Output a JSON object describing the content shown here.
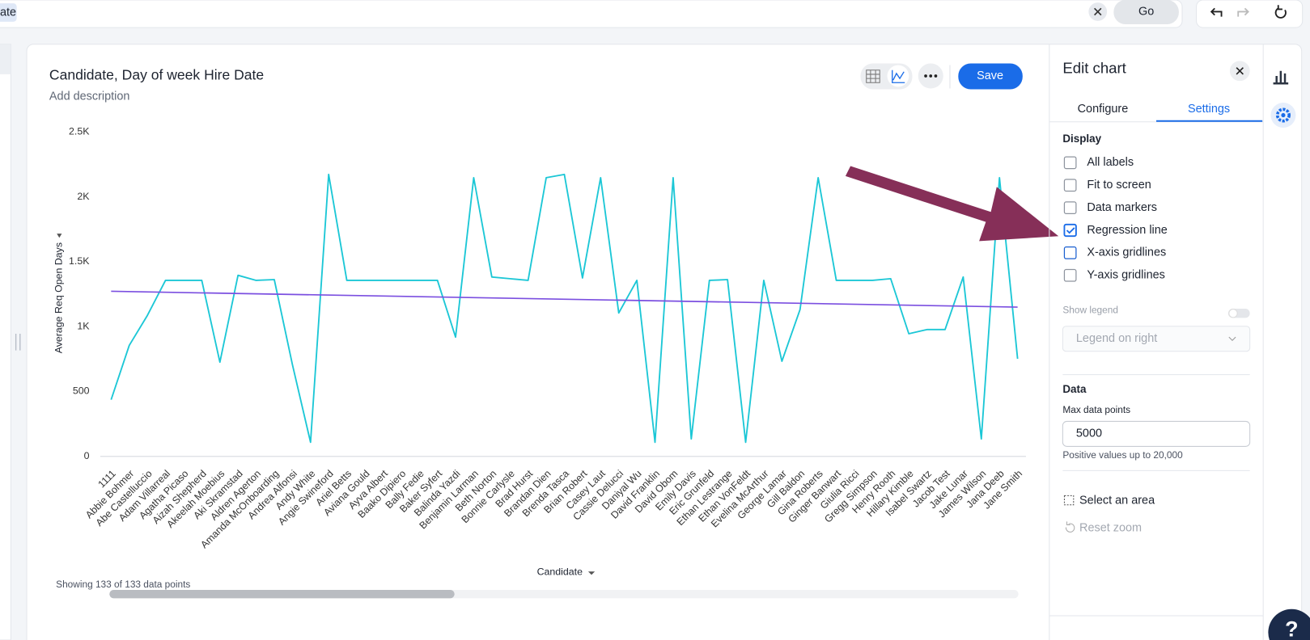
{
  "search": {
    "chip": "ate",
    "go": "Go"
  },
  "chart_data": {
    "type": "line",
    "title": "Candidate, Day of week Hire Date",
    "subtitle": "Add description",
    "save": "Save",
    "ylabel": "Average Req Open Days",
    "xlabel": "Candidate",
    "footnote": "Showing 133 of 133 data points",
    "categories": [
      "1111",
      "Abbie Bohmer",
      "Abe Castelluccio",
      "Adam Villarreal",
      "Agatha Picaso",
      "Aizah Shepherd",
      "Akeelah Moebius",
      "Aki Skramstad",
      "Aldren Agerton",
      "Amanda McOnboarding",
      "Andrea Alfonsi",
      "Andy White",
      "Angie Swineford",
      "Ariel Betts",
      "Aviana Gould",
      "Ayva Albert",
      "Baako Dipiero",
      "Bally Fedie",
      "Baker Syfert",
      "Balinda Yazdi",
      "Benjamin Larman",
      "Beth Norton",
      "Bonnie Carlysle",
      "Brad Hurst",
      "Brandan Dien",
      "Brenda Tasca",
      "Brian Robert",
      "Casey Laut",
      "Cassie Delucci",
      "Daniyal Wu",
      "David Franklin",
      "David Obom",
      "Emily Davis",
      "Eric Grunfeld",
      "Ethan Lestrange",
      "Ethan VonFeldt",
      "Evelina McArthur",
      "George Lamar",
      "Gill Baldon",
      "Gina Roberts",
      "Ginger Banwart",
      "Giulia Ricci",
      "Gregg Simpson",
      "Henry Rooth",
      "Hillary Kimble",
      "Isabel Swartz",
      "Jacob Test",
      "Jake Lunar",
      "James Wilson",
      "Jana Deeb",
      "Jane Smith"
    ],
    "values": [
      437,
      855,
      1086,
      1356,
      1356,
      1356,
      726,
      1395,
      1356,
      1362,
      707,
      109,
      2172,
      1356,
      1356,
      1356,
      1356,
      1356,
      1356,
      919,
      2147,
      1382,
      1369,
      1356,
      2147,
      2172,
      1375,
      2147,
      1105,
      1356,
      109,
      2147,
      135,
      1356,
      1362,
      109,
      1356,
      733,
      1131,
      2147,
      1356,
      1356,
      1356,
      1369,
      945,
      977,
      977,
      1382,
      135,
      2147,
      752
    ],
    "color": "#1cc7d6",
    "regression_line": {
      "start": 1272,
      "end": 1150,
      "color": "#7b4fe0"
    },
    "ylim": [
      0,
      2500
    ],
    "yticks": [
      0,
      500,
      {
        "value": 1000,
        "label": "1K"
      },
      {
        "value": 1500,
        "label": "1.5K"
      },
      {
        "value": 2000,
        "label": "2K"
      },
      {
        "value": 2500,
        "label": "2.5K"
      }
    ],
    "grid": false
  },
  "panel": {
    "title": "Edit chart",
    "tabs": [
      "Configure",
      "Settings"
    ],
    "display": "Display",
    "options": [
      {
        "label": "All labels",
        "checked": false
      },
      {
        "label": "Fit to screen",
        "checked": false
      },
      {
        "label": "Data markers",
        "checked": false
      },
      {
        "label": "Regression line",
        "checked": true
      },
      {
        "label": "X-axis gridlines",
        "checked": false
      },
      {
        "label": "Y-axis gridlines",
        "checked": false
      }
    ],
    "show_legend": "Show legend",
    "legend_select": "Legend on right",
    "data": "Data",
    "max_points_label": "Max data points",
    "max_points": "5000",
    "hint": "Positive values up to 20,000",
    "select_area": "Select an area",
    "reset_zoom": "Reset zoom"
  },
  "help": "?"
}
